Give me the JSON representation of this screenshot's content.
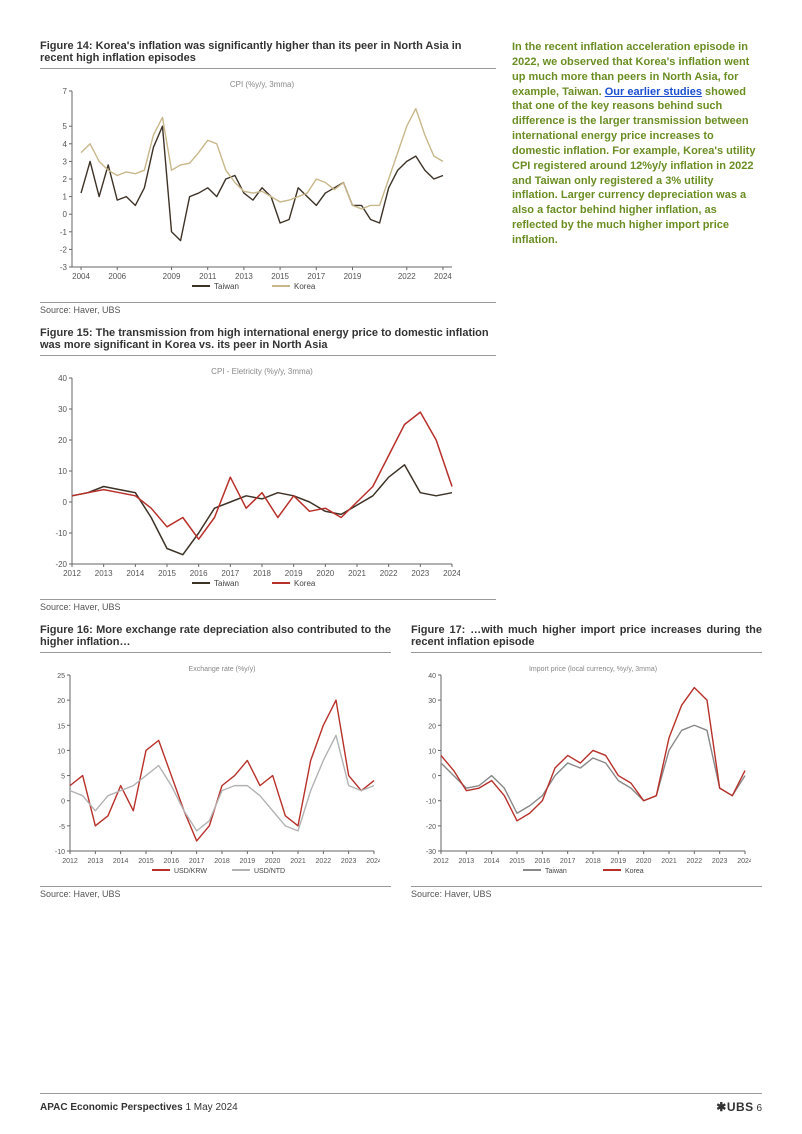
{
  "fig14": {
    "title": "Figure 14: Korea's inflation was significantly higher than its peer in North Asia in recent high inflation episodes",
    "chart_label": "CPI (%y/y, 3mma)",
    "type": "line",
    "x_labels": [
      "2004",
      "2006",
      "2009",
      "2011",
      "2013",
      "2015",
      "2017",
      "2019",
      "2022",
      "2024"
    ],
    "x_positions": [
      2004,
      2006,
      2009,
      2011,
      2013,
      2015,
      2017,
      2019,
      2022,
      2024
    ],
    "xlim": [
      2003.5,
      2024.5
    ],
    "ylim": [
      -3.0,
      7.0
    ],
    "yticks": [
      -3.0,
      -2.0,
      -1.0,
      0.0,
      1.0,
      2.0,
      3.0,
      4.0,
      5.0,
      7.0
    ],
    "label_fontsize": 8,
    "axis_color": "#666666",
    "grid_color": "#e9e9e9",
    "background": "#ffffff",
    "line_width": 1.4,
    "series": [
      {
        "name": "Taiwan",
        "color": "#3d3226",
        "data": [
          [
            2004,
            1.2
          ],
          [
            2004.5,
            3.0
          ],
          [
            2005,
            1.0
          ],
          [
            2005.5,
            2.8
          ],
          [
            2006,
            0.8
          ],
          [
            2006.5,
            1.0
          ],
          [
            2007,
            0.5
          ],
          [
            2007.5,
            1.5
          ],
          [
            2008,
            3.8
          ],
          [
            2008.5,
            5.0
          ],
          [
            2009,
            -1.0
          ],
          [
            2009.5,
            -1.5
          ],
          [
            2010,
            1.0
          ],
          [
            2010.5,
            1.2
          ],
          [
            2011,
            1.5
          ],
          [
            2011.5,
            1.0
          ],
          [
            2012,
            2.0
          ],
          [
            2012.5,
            2.2
          ],
          [
            2013,
            1.2
          ],
          [
            2013.5,
            0.8
          ],
          [
            2014,
            1.5
          ],
          [
            2014.5,
            1.0
          ],
          [
            2015,
            -0.5
          ],
          [
            2015.5,
            -0.3
          ],
          [
            2016,
            1.5
          ],
          [
            2016.5,
            1.0
          ],
          [
            2017,
            0.5
          ],
          [
            2017.5,
            1.2
          ],
          [
            2018,
            1.5
          ],
          [
            2018.5,
            1.8
          ],
          [
            2019,
            0.5
          ],
          [
            2019.5,
            0.5
          ],
          [
            2020,
            -0.3
          ],
          [
            2020.5,
            -0.5
          ],
          [
            2021,
            1.5
          ],
          [
            2021.5,
            2.5
          ],
          [
            2022,
            3.0
          ],
          [
            2022.5,
            3.3
          ],
          [
            2023,
            2.5
          ],
          [
            2023.5,
            2.0
          ],
          [
            2024,
            2.2
          ]
        ]
      },
      {
        "name": "Korea",
        "color": "#c8b78a",
        "data": [
          [
            2004,
            3.5
          ],
          [
            2004.5,
            4.0
          ],
          [
            2005,
            3.0
          ],
          [
            2005.5,
            2.5
          ],
          [
            2006,
            2.2
          ],
          [
            2006.5,
            2.4
          ],
          [
            2007,
            2.3
          ],
          [
            2007.5,
            2.5
          ],
          [
            2008,
            4.5
          ],
          [
            2008.5,
            5.5
          ],
          [
            2009,
            2.5
          ],
          [
            2009.5,
            2.8
          ],
          [
            2010,
            2.9
          ],
          [
            2010.5,
            3.5
          ],
          [
            2011,
            4.2
          ],
          [
            2011.5,
            4.0
          ],
          [
            2012,
            2.5
          ],
          [
            2012.5,
            1.8
          ],
          [
            2013,
            1.3
          ],
          [
            2013.5,
            1.2
          ],
          [
            2014,
            1.3
          ],
          [
            2014.5,
            1.0
          ],
          [
            2015,
            0.7
          ],
          [
            2015.5,
            0.8
          ],
          [
            2016,
            1.0
          ],
          [
            2016.5,
            1.2
          ],
          [
            2017,
            2.0
          ],
          [
            2017.5,
            1.8
          ],
          [
            2018,
            1.4
          ],
          [
            2018.5,
            1.8
          ],
          [
            2019,
            0.5
          ],
          [
            2019.5,
            0.3
          ],
          [
            2020,
            0.5
          ],
          [
            2020.5,
            0.5
          ],
          [
            2021,
            2.0
          ],
          [
            2021.5,
            3.5
          ],
          [
            2022,
            5.0
          ],
          [
            2022.5,
            6.0
          ],
          [
            2023,
            4.5
          ],
          [
            2023.5,
            3.3
          ],
          [
            2024,
            3.0
          ]
        ]
      }
    ],
    "source": "Source: Haver, UBS"
  },
  "fig15": {
    "title": "Figure 15: The transmission from high international energy price to domestic inflation was more significant in Korea vs. its peer in North Asia",
    "chart_label": "CPI - Eletricity (%y/y, 3mma)",
    "type": "line",
    "x_labels": [
      "2012",
      "2013",
      "2014",
      "2015",
      "2016",
      "2017",
      "2018",
      "2019",
      "2020",
      "2021",
      "2022",
      "2023",
      "2024"
    ],
    "xlim": [
      2012,
      2024
    ],
    "ylim": [
      -20,
      40
    ],
    "yticks": [
      -20,
      -10,
      0,
      10,
      20,
      30,
      40
    ],
    "label_fontsize": 8,
    "axis_color": "#666666",
    "grid_color": "#eeeeee",
    "background": "#ffffff",
    "line_width": 1.5,
    "series": [
      {
        "name": "Taiwan",
        "color": "#3d3226",
        "data": [
          [
            2012,
            2
          ],
          [
            2012.5,
            3
          ],
          [
            2013,
            5
          ],
          [
            2013.5,
            4
          ],
          [
            2014,
            3
          ],
          [
            2014.5,
            -5
          ],
          [
            2015,
            -15
          ],
          [
            2015.5,
            -17
          ],
          [
            2016,
            -10
          ],
          [
            2016.5,
            -2
          ],
          [
            2017,
            0
          ],
          [
            2017.5,
            2
          ],
          [
            2018,
            1
          ],
          [
            2018.5,
            3
          ],
          [
            2019,
            2
          ],
          [
            2019.5,
            0
          ],
          [
            2020,
            -3
          ],
          [
            2020.5,
            -4
          ],
          [
            2021,
            -1
          ],
          [
            2021.5,
            2
          ],
          [
            2022,
            8
          ],
          [
            2022.5,
            12
          ],
          [
            2023,
            3
          ],
          [
            2023.5,
            2
          ],
          [
            2024,
            3
          ]
        ]
      },
      {
        "name": "Korea",
        "color": "#b8302a",
        "data": [
          [
            2012,
            2
          ],
          [
            2012.5,
            3
          ],
          [
            2013,
            4
          ],
          [
            2013.5,
            3
          ],
          [
            2014,
            2
          ],
          [
            2014.5,
            -2
          ],
          [
            2015,
            -8
          ],
          [
            2015.5,
            -5
          ],
          [
            2016,
            -12
          ],
          [
            2016.5,
            -5
          ],
          [
            2017,
            8
          ],
          [
            2017.5,
            -2
          ],
          [
            2018,
            3
          ],
          [
            2018.5,
            -5
          ],
          [
            2019,
            2
          ],
          [
            2019.5,
            -3
          ],
          [
            2020,
            -2
          ],
          [
            2020.5,
            -5
          ],
          [
            2021,
            0
          ],
          [
            2021.5,
            5
          ],
          [
            2022,
            15
          ],
          [
            2022.5,
            25
          ],
          [
            2023,
            29
          ],
          [
            2023.5,
            20
          ],
          [
            2024,
            5
          ]
        ]
      }
    ],
    "source": "Source: Haver, UBS"
  },
  "fig16": {
    "title": "Figure 16: More exchange rate depreciation also contributed to the higher inflation…",
    "chart_label": "Exchange rate (%y/y)",
    "type": "line",
    "x_labels": [
      "2012",
      "2013",
      "2014",
      "2015",
      "2016",
      "2017",
      "2018",
      "2019",
      "2020",
      "2021",
      "2022",
      "2023",
      "2024"
    ],
    "xlim": [
      2012,
      2024
    ],
    "ylim": [
      -10,
      25
    ],
    "yticks": [
      -10,
      -5,
      0,
      5,
      10,
      15,
      20,
      25
    ],
    "label_fontsize": 7,
    "axis_color": "#666666",
    "background": "#ffffff",
    "line_width": 1.4,
    "series": [
      {
        "name": "USD/KRW",
        "color": "#b8302a",
        "data": [
          [
            2012,
            3
          ],
          [
            2012.5,
            5
          ],
          [
            2013,
            -5
          ],
          [
            2013.5,
            -3
          ],
          [
            2014,
            3
          ],
          [
            2014.5,
            -2
          ],
          [
            2015,
            10
          ],
          [
            2015.5,
            12
          ],
          [
            2016,
            5
          ],
          [
            2016.5,
            -2
          ],
          [
            2017,
            -8
          ],
          [
            2017.5,
            -5
          ],
          [
            2018,
            3
          ],
          [
            2018.5,
            5
          ],
          [
            2019,
            8
          ],
          [
            2019.5,
            3
          ],
          [
            2020,
            5
          ],
          [
            2020.5,
            -3
          ],
          [
            2021,
            -5
          ],
          [
            2021.5,
            8
          ],
          [
            2022,
            15
          ],
          [
            2022.5,
            20
          ],
          [
            2023,
            5
          ],
          [
            2023.5,
            2
          ],
          [
            2024,
            4
          ]
        ]
      },
      {
        "name": "USD/NTD",
        "color": "#b2b2b2",
        "data": [
          [
            2012,
            2
          ],
          [
            2012.5,
            1
          ],
          [
            2013,
            -2
          ],
          [
            2013.5,
            1
          ],
          [
            2014,
            2
          ],
          [
            2014.5,
            3
          ],
          [
            2015,
            5
          ],
          [
            2015.5,
            7
          ],
          [
            2016,
            3
          ],
          [
            2016.5,
            -2
          ],
          [
            2017,
            -6
          ],
          [
            2017.5,
            -4
          ],
          [
            2018,
            2
          ],
          [
            2018.5,
            3
          ],
          [
            2019,
            3
          ],
          [
            2019.5,
            1
          ],
          [
            2020,
            -2
          ],
          [
            2020.5,
            -5
          ],
          [
            2021,
            -6
          ],
          [
            2021.5,
            2
          ],
          [
            2022,
            8
          ],
          [
            2022.5,
            13
          ],
          [
            2023,
            3
          ],
          [
            2023.5,
            2
          ],
          [
            2024,
            3
          ]
        ]
      }
    ],
    "source": "Source: Haver, UBS"
  },
  "fig17": {
    "title": "Figure 17: …with much higher import price increases during the recent inflation episode",
    "chart_label": "Import price (local currency, %y/y, 3mma)",
    "type": "line",
    "x_labels": [
      "2012",
      "2013",
      "2014",
      "2015",
      "2016",
      "2017",
      "2018",
      "2019",
      "2020",
      "2021",
      "2022",
      "2023",
      "2024"
    ],
    "xlim": [
      2012,
      2024
    ],
    "ylim": [
      -30,
      40
    ],
    "yticks": [
      -30,
      -20,
      -10,
      0,
      10,
      20,
      30,
      40
    ],
    "label_fontsize": 7,
    "axis_color": "#666666",
    "background": "#ffffff",
    "line_width": 1.4,
    "series": [
      {
        "name": "Taiwan",
        "color": "#888888",
        "data": [
          [
            2012,
            5
          ],
          [
            2012.5,
            0
          ],
          [
            2013,
            -5
          ],
          [
            2013.5,
            -4
          ],
          [
            2014,
            0
          ],
          [
            2014.5,
            -5
          ],
          [
            2015,
            -15
          ],
          [
            2015.5,
            -12
          ],
          [
            2016,
            -8
          ],
          [
            2016.5,
            0
          ],
          [
            2017,
            5
          ],
          [
            2017.5,
            3
          ],
          [
            2018,
            7
          ],
          [
            2018.5,
            5
          ],
          [
            2019,
            -2
          ],
          [
            2019.5,
            -5
          ],
          [
            2020,
            -10
          ],
          [
            2020.5,
            -8
          ],
          [
            2021,
            10
          ],
          [
            2021.5,
            18
          ],
          [
            2022,
            20
          ],
          [
            2022.5,
            18
          ],
          [
            2023,
            -5
          ],
          [
            2023.5,
            -8
          ],
          [
            2024,
            0
          ]
        ]
      },
      {
        "name": "Korea",
        "color": "#b8302a",
        "data": [
          [
            2012,
            8
          ],
          [
            2012.5,
            2
          ],
          [
            2013,
            -6
          ],
          [
            2013.5,
            -5
          ],
          [
            2014,
            -2
          ],
          [
            2014.5,
            -8
          ],
          [
            2015,
            -18
          ],
          [
            2015.5,
            -15
          ],
          [
            2016,
            -10
          ],
          [
            2016.5,
            3
          ],
          [
            2017,
            8
          ],
          [
            2017.5,
            5
          ],
          [
            2018,
            10
          ],
          [
            2018.5,
            8
          ],
          [
            2019,
            0
          ],
          [
            2019.5,
            -3
          ],
          [
            2020,
            -10
          ],
          [
            2020.5,
            -8
          ],
          [
            2021,
            15
          ],
          [
            2021.5,
            28
          ],
          [
            2022,
            35
          ],
          [
            2022.5,
            30
          ],
          [
            2023,
            -5
          ],
          [
            2023.5,
            -8
          ],
          [
            2024,
            2
          ]
        ]
      }
    ],
    "source": "Source: Haver, UBS"
  },
  "sidebar": {
    "text_before_link": "In the recent inflation acceleration episode in 2022, we observed that Korea's inflation went up much more than peers in North Asia, for example, Taiwan. ",
    "link_text": "Our earlier studies",
    "text_after_link": " showed that one of the key reasons behind such difference is the larger transmission between international energy price increases to domestic inflation. For example, Korea's utility CPI registered around 12%y/y inflation in 2022 and Taiwan only registered a 3% utility inflation. Larger currency depreciation was a also a factor behind higher inflation, as reflected by the much higher import price inflation."
  },
  "footer": {
    "publication": "APAC Economic Perspectives",
    "date": "1 May 2024",
    "brand": "UBS",
    "page": "6"
  }
}
